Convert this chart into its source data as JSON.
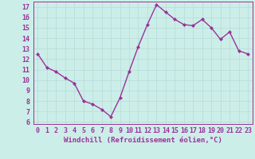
{
  "x": [
    0,
    1,
    2,
    3,
    4,
    5,
    6,
    7,
    8,
    9,
    10,
    11,
    12,
    13,
    14,
    15,
    16,
    17,
    18,
    19,
    20,
    21,
    22,
    23
  ],
  "y": [
    12.5,
    11.2,
    10.8,
    10.2,
    9.7,
    8.0,
    7.7,
    7.2,
    6.5,
    8.3,
    10.8,
    13.2,
    15.3,
    17.2,
    16.5,
    15.8,
    15.3,
    15.2,
    15.8,
    15.0,
    13.9,
    14.6,
    12.8,
    12.5
  ],
  "line_color": "#993399",
  "marker": "D",
  "markersize": 2.0,
  "linewidth": 1.0,
  "xlabel": "Windchill (Refroidissement éolien,°C)",
  "xlabel_fontsize": 6.5,
  "xlim": [
    -0.5,
    23.5
  ],
  "ylim": [
    5.8,
    17.5
  ],
  "yticks": [
    6,
    7,
    8,
    9,
    10,
    11,
    12,
    13,
    14,
    15,
    16,
    17
  ],
  "xticks": [
    0,
    1,
    2,
    3,
    4,
    5,
    6,
    7,
    8,
    9,
    10,
    11,
    12,
    13,
    14,
    15,
    16,
    17,
    18,
    19,
    20,
    21,
    22,
    23
  ],
  "bg_color": "#cceee8",
  "grid_color": "#bbdddd",
  "tick_color": "#993399",
  "tick_fontsize": 6.0,
  "label_color": "#993399",
  "spine_color": "#993399"
}
